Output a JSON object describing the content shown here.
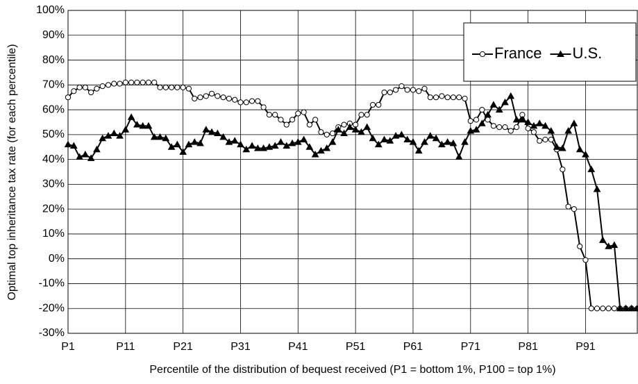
{
  "chart_data": {
    "type": "line",
    "y_label": "Optimal top inheritance tax rate (for each percentile)",
    "x_label": "Percentile of the distribution of bequest received (P1 = bottom 1%, P100 = top 1%)",
    "categories": [
      "P1",
      null,
      null,
      null,
      null,
      null,
      null,
      null,
      null,
      null,
      "P11",
      null,
      null,
      null,
      null,
      null,
      null,
      null,
      null,
      null,
      "P21",
      null,
      null,
      null,
      null,
      null,
      null,
      null,
      null,
      null,
      "P31",
      null,
      null,
      null,
      null,
      null,
      null,
      null,
      null,
      null,
      "P41",
      null,
      null,
      null,
      null,
      null,
      null,
      null,
      null,
      null,
      "P51",
      null,
      null,
      null,
      null,
      null,
      null,
      null,
      null,
      null,
      "P61",
      null,
      null,
      null,
      null,
      null,
      null,
      null,
      null,
      null,
      "P71",
      null,
      null,
      null,
      null,
      null,
      null,
      null,
      null,
      null,
      "P81",
      null,
      null,
      null,
      null,
      null,
      null,
      null,
      null,
      null,
      "P91",
      null,
      null,
      null,
      null,
      null,
      null,
      null,
      null,
      null
    ],
    "ylim": [
      -30,
      100
    ],
    "yticks": [
      {
        "value": -30,
        "label": "-30%"
      },
      {
        "value": -20,
        "label": "-20%"
      },
      {
        "value": -10,
        "label": "-10%"
      },
      {
        "value": 0,
        "label": "0%"
      },
      {
        "value": 10,
        "label": "10%"
      },
      {
        "value": 20,
        "label": "20%"
      },
      {
        "value": 30,
        "label": "30%"
      },
      {
        "value": 40,
        "label": "40%"
      },
      {
        "value": 50,
        "label": "50%"
      },
      {
        "value": 60,
        "label": "60%"
      },
      {
        "value": 70,
        "label": "70%"
      },
      {
        "value": 80,
        "label": "80%"
      },
      {
        "value": 90,
        "label": "90%"
      },
      {
        "value": 100,
        "label": "100%"
      }
    ],
    "grid": true,
    "legend": "upper right",
    "series": [
      {
        "name": "France",
        "color": "#000000",
        "marker": "circle",
        "marker_fill": "#ffffff",
        "values": [
          65,
          67.5,
          69,
          69,
          67,
          68.5,
          69.5,
          70,
          70.5,
          70.5,
          71,
          71,
          71,
          71,
          71,
          71,
          69,
          69,
          69,
          69,
          69,
          68.5,
          64.5,
          65,
          65.5,
          66.5,
          65.5,
          65,
          64.5,
          64,
          63,
          63,
          63.5,
          63.5,
          61,
          58,
          58,
          56,
          54,
          56,
          58.5,
          59,
          54,
          56,
          51,
          50,
          50.5,
          53,
          54,
          54.5,
          54,
          58,
          58,
          62,
          62,
          67,
          67,
          68,
          69.5,
          68,
          68,
          67.5,
          68.5,
          65,
          65,
          65.5,
          65,
          65,
          65,
          64.5,
          55.5,
          56,
          60,
          56,
          53.5,
          53,
          53,
          51.5,
          53,
          58,
          52.5,
          51,
          47.5,
          48,
          48,
          44,
          36,
          21,
          20,
          5,
          -0.5,
          -20,
          -20,
          -20,
          -20,
          -20,
          -20,
          -20,
          -20,
          -20
        ]
      },
      {
        "name": "U.S.",
        "color": "#000000",
        "marker": "triangle",
        "marker_fill": "#000000",
        "values": [
          46,
          45.5,
          41,
          42,
          40.5,
          44,
          48.5,
          49.5,
          50.5,
          49.5,
          52,
          57,
          54,
          53.5,
          53.5,
          49,
          49,
          48.5,
          45,
          46,
          43,
          46,
          47,
          46.5,
          52,
          51,
          50.5,
          49,
          47,
          47.5,
          46,
          44,
          45.5,
          44.5,
          44.5,
          45,
          45.5,
          47,
          45.5,
          46.5,
          47,
          48,
          45,
          42,
          43.5,
          44.5,
          47,
          52,
          50.5,
          53,
          52,
          51,
          53,
          48.5,
          46,
          48,
          47.5,
          49.5,
          50,
          48,
          47,
          43.5,
          47,
          49.5,
          48.5,
          46,
          47,
          46.5,
          41,
          47,
          51.5,
          52,
          54.5,
          58,
          62,
          60,
          63,
          65.5,
          56,
          56,
          55,
          53.5,
          54.5,
          53.5,
          51.5,
          45,
          44.5,
          51.5,
          54.5,
          44,
          42,
          36,
          28,
          7.5,
          5,
          5.5,
          -20,
          -20,
          -20,
          -20
        ]
      }
    ]
  }
}
